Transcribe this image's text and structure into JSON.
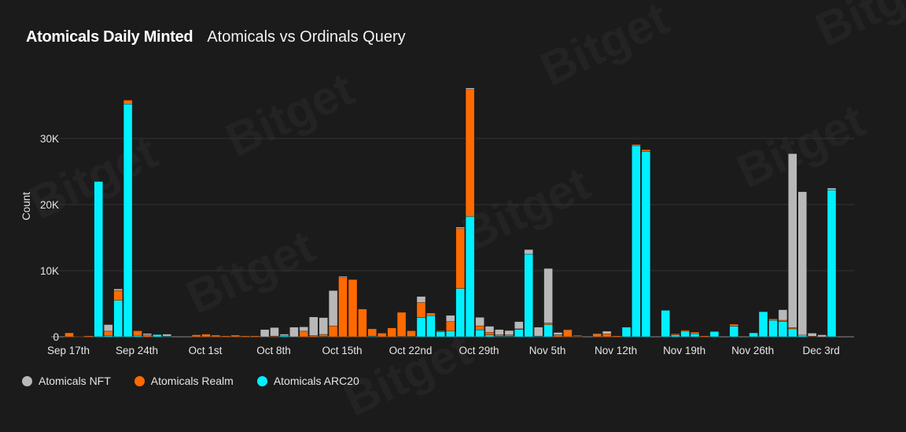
{
  "header": {
    "title": "Atomicals Daily Minted",
    "subtitle": "Atomicals vs Ordinals Query"
  },
  "watermark": "Bitget",
  "chart_data": {
    "type": "bar",
    "stacked": true,
    "ylabel": "Count",
    "ylim": [
      0,
      38000
    ],
    "yticks": [
      {
        "value": 0,
        "label": "0"
      },
      {
        "value": 10000,
        "label": "10K"
      },
      {
        "value": 20000,
        "label": "20K"
      },
      {
        "value": 30000,
        "label": "30K"
      }
    ],
    "grid": true,
    "legend": "bottom-left",
    "xtick_labels": [
      "Sep 17th",
      "Sep 24th",
      "Oct 1st",
      "Oct 8th",
      "Oct 15th",
      "Oct 22nd",
      "Oct 29th",
      "Nov 5th",
      "Nov 12th",
      "Nov 19th",
      "Nov 26th",
      "Dec 3rd"
    ],
    "categories": [
      "Sep 17",
      "Sep 18",
      "Sep 19",
      "Sep 20",
      "Sep 21",
      "Sep 22",
      "Sep 23",
      "Sep 24",
      "Sep 25",
      "Sep 26",
      "Sep 27",
      "Sep 28",
      "Sep 29",
      "Sep 30",
      "Oct 1",
      "Oct 2",
      "Oct 3",
      "Oct 4",
      "Oct 5",
      "Oct 6",
      "Oct 7",
      "Oct 8",
      "Oct 9",
      "Oct 10",
      "Oct 11",
      "Oct 12",
      "Oct 13",
      "Oct 14",
      "Oct 15",
      "Oct 16",
      "Oct 17",
      "Oct 18",
      "Oct 19",
      "Oct 20",
      "Oct 21",
      "Oct 22",
      "Oct 23",
      "Oct 24",
      "Oct 25",
      "Oct 26",
      "Oct 27",
      "Oct 28",
      "Oct 29",
      "Oct 30",
      "Oct 31",
      "Nov 1",
      "Nov 2",
      "Nov 3",
      "Nov 4",
      "Nov 5",
      "Nov 6",
      "Nov 7",
      "Nov 8",
      "Nov 9",
      "Nov 10",
      "Nov 11",
      "Nov 12",
      "Nov 13",
      "Nov 14",
      "Nov 15",
      "Nov 16",
      "Nov 17",
      "Nov 18",
      "Nov 19",
      "Nov 20",
      "Nov 21",
      "Nov 22",
      "Nov 23",
      "Nov 24",
      "Nov 25",
      "Nov 26",
      "Nov 27",
      "Nov 28",
      "Nov 29",
      "Nov 30",
      "Dec 1",
      "Dec 2",
      "Dec 3",
      "Dec 4"
    ],
    "series": [
      {
        "name": "Atomicals ARC20",
        "color": "#00f0ff",
        "values": [
          0,
          0,
          0,
          23500,
          200,
          5500,
          35200,
          200,
          0,
          350,
          100,
          0,
          0,
          0,
          0,
          0,
          0,
          0,
          0,
          0,
          0,
          0,
          200,
          0,
          0,
          0,
          50,
          0,
          0,
          0,
          0,
          100,
          0,
          0,
          50,
          50,
          2900,
          3200,
          750,
          900,
          7300,
          18200,
          1050,
          300,
          100,
          100,
          1100,
          12500,
          100,
          1850,
          0,
          0,
          0,
          0,
          0,
          0,
          0,
          1450,
          28900,
          28000,
          0,
          4000,
          300,
          850,
          450,
          0,
          800,
          0,
          1600,
          0,
          600,
          3800,
          2500,
          2300,
          1200,
          250,
          50,
          0,
          22200
        ]
      },
      {
        "name": "Atomicals Realm",
        "color": "#ff6a00",
        "values": [
          600,
          50,
          150,
          0,
          650,
          1500,
          600,
          700,
          300,
          0,
          0,
          0,
          0,
          300,
          400,
          250,
          150,
          250,
          150,
          150,
          0,
          100,
          0,
          0,
          850,
          200,
          300,
          1650,
          8950,
          8650,
          4200,
          1100,
          550,
          1350,
          3650,
          850,
          2300,
          400,
          150,
          1400,
          9100,
          19200,
          600,
          400,
          200,
          200,
          100,
          0,
          0,
          250,
          300,
          1050,
          100,
          0,
          450,
          450,
          150,
          0,
          200,
          300,
          0,
          0,
          150,
          150,
          250,
          150,
          0,
          0,
          300,
          0,
          0,
          0,
          200,
          200,
          200,
          0,
          50,
          0,
          0
        ]
      },
      {
        "name": "Atomicals NFT",
        "color": "#b8b8b8",
        "values": [
          0,
          0,
          0,
          0,
          1000,
          250,
          0,
          0,
          200,
          0,
          300,
          0,
          0,
          0,
          0,
          0,
          0,
          0,
          0,
          0,
          1100,
          1300,
          200,
          1450,
          650,
          2800,
          2550,
          5350,
          200,
          0,
          0,
          0,
          0,
          0,
          0,
          0,
          900,
          0,
          0,
          950,
          200,
          250,
          1300,
          900,
          800,
          650,
          1100,
          700,
          1350,
          8250,
          350,
          50,
          100,
          0,
          50,
          400,
          0,
          0,
          0,
          0,
          0,
          0,
          0,
          0,
          0,
          0,
          0,
          0,
          0,
          0,
          0,
          0,
          0,
          1600,
          26300,
          21700,
          450,
          300,
          300
        ]
      }
    ]
  },
  "legend": [
    {
      "label": "Atomicals NFT",
      "color": "#b8b8b8"
    },
    {
      "label": "Atomicals Realm",
      "color": "#ff6a00"
    },
    {
      "label": "Atomicals ARC20",
      "color": "#00f0ff"
    }
  ]
}
